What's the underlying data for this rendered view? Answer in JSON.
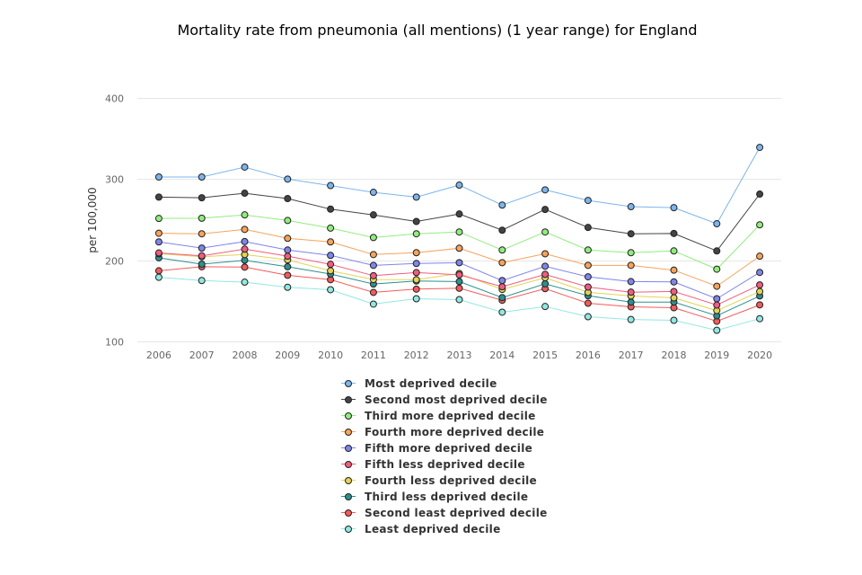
{
  "chart_data": {
    "type": "line",
    "title": "Mortality rate from pneumonia (all mentions) (1 year range) for England",
    "xlabel": "",
    "ylabel": "per 100,000",
    "ylim": [
      100,
      400
    ],
    "yticks": [
      "100",
      "200",
      "300",
      "400"
    ],
    "ytick_values": [
      100,
      200,
      300,
      400
    ],
    "grid": true,
    "legend_position": "bottom",
    "categories": [
      "2006",
      "2007",
      "2008",
      "2009",
      "2010",
      "2011",
      "2012",
      "2013",
      "2014",
      "2015",
      "2016",
      "2017",
      "2018",
      "2019",
      "2020"
    ],
    "series": [
      {
        "name": "Most deprived decile",
        "color": "#7cb5ec",
        "values": [
          302.6,
          302.6,
          314.8,
          300,
          292,
          283.7,
          277.8,
          292.6,
          268,
          286.7,
          273.7,
          266,
          264.8,
          245,
          339
        ]
      },
      {
        "name": "Second most deprived decile",
        "color": "#434348",
        "values": [
          277.8,
          277,
          282.6,
          276,
          263,
          255.9,
          247.8,
          257,
          237,
          262.6,
          240.4,
          232.6,
          233,
          211.5,
          281.5
        ]
      },
      {
        "name": "Third more deprived decile",
        "color": "#90ed7d",
        "values": [
          251.5,
          251.8,
          255.9,
          249,
          239.6,
          228,
          232.6,
          234.8,
          212.6,
          234.8,
          212.6,
          209.3,
          211.5,
          189,
          243.7
        ]
      },
      {
        "name": "Fourth more deprived decile",
        "color": "#f7a35c",
        "values": [
          233.3,
          232.6,
          238,
          227,
          222.6,
          207,
          209.3,
          214.8,
          197,
          208,
          193.7,
          193.7,
          187.8,
          168,
          205
        ]
      },
      {
        "name": "Fifth more deprived decile",
        "color": "#8085e9",
        "values": [
          222.6,
          215,
          223,
          212.6,
          206,
          193.7,
          196,
          197,
          175,
          192.6,
          179.6,
          173.7,
          173.3,
          152.6,
          185
        ]
      },
      {
        "name": "Fifth less deprived decile",
        "color": "#f15c80",
        "values": [
          209,
          205.5,
          213.7,
          205,
          195,
          181,
          184.8,
          182,
          167.4,
          182.6,
          167,
          160.7,
          161.5,
          144.8,
          169.6
        ]
      },
      {
        "name": "Fourth less deprived decile",
        "color": "#e4d354",
        "values": [
          208,
          204.4,
          207,
          200.4,
          187,
          176.3,
          176,
          183.7,
          164,
          178.5,
          160.4,
          156,
          153.7,
          138,
          161.5
        ]
      },
      {
        "name": "Third less deprived decile",
        "color": "#2b908f",
        "values": [
          203,
          195.2,
          200,
          192,
          183,
          170.7,
          174.4,
          173.7,
          154,
          171,
          156.3,
          148.5,
          148.5,
          131.5,
          156
        ]
      },
      {
        "name": "Second least deprived decile",
        "color": "#f45b5b",
        "values": [
          187,
          192,
          191.5,
          181.5,
          176,
          160.4,
          164.4,
          165.5,
          150.7,
          165,
          147,
          142.6,
          141.5,
          124.8,
          145
        ]
      },
      {
        "name": "Least deprived decile",
        "color": "#91e8e1",
        "values": [
          179,
          175,
          173,
          166.7,
          163.7,
          146,
          152.6,
          151.5,
          136,
          143,
          130.4,
          127,
          126,
          113.7,
          128
        ]
      }
    ]
  }
}
